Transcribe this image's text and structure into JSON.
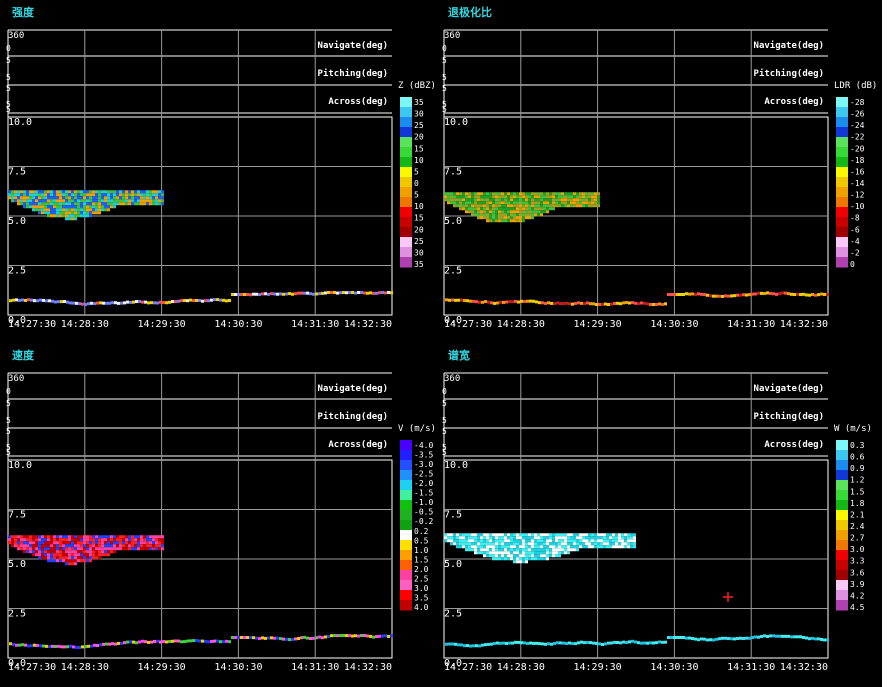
{
  "panels": [
    {
      "title": "强度",
      "title_color": "#33d6e0",
      "cbar_label": "Z (dBZ)",
      "cbar_colors": [
        "#7cf7f7",
        "#3cc6f0",
        "#1a8cf0",
        "#1038d8",
        "#5ae25a",
        "#38d838",
        "#14b814",
        "#f8f800",
        "#f0c800",
        "#f0a000",
        "#f07800",
        "#f00000",
        "#c80000",
        "#a00000",
        "#f8c8f8",
        "#e090e0",
        "#b040b0"
      ],
      "cbar_ticks": [
        "35",
        "30",
        "25",
        "20",
        "15",
        "10",
        "5",
        "0",
        "5",
        "10",
        "15",
        "20",
        "25",
        "30",
        "35"
      ],
      "echo_colors": [
        "#40c040",
        "#f0a000",
        "#2060f0",
        "#20d0d0"
      ],
      "echo_height": "#3ca23c",
      "ground_colors": [
        "#f0f0f0",
        "#ff5050",
        "#f0d000",
        "#7080ff"
      ]
    },
    {
      "title": "退极化比",
      "title_color": "#33d6e0",
      "cbar_label": "LDR (dB)",
      "cbar_colors": [
        "#7cf7f7",
        "#3cc6f0",
        "#1a8cf0",
        "#1038d8",
        "#5ae25a",
        "#38d838",
        "#14b814",
        "#f8f800",
        "#f0c800",
        "#f0a000",
        "#f07800",
        "#f00000",
        "#c80000",
        "#a00000",
        "#f8c8f8",
        "#e090e0",
        "#b040b0"
      ],
      "cbar_ticks": [
        "-28",
        "-26",
        "-24",
        "-22",
        "-20",
        "-18",
        "-16",
        "-14",
        "-12",
        "-10",
        "-8",
        "-6",
        "-4",
        "-2",
        "0"
      ],
      "echo_colors": [
        "#40c040",
        "#20a020",
        "#a0a020",
        "#f0a000"
      ],
      "echo_height": "#3ca23c",
      "ground_colors": [
        "#ff5050",
        "#f0a000",
        "#f0d000",
        "#c02020"
      ]
    },
    {
      "title": "速度",
      "title_color": "#33d6e0",
      "cbar_label": "V (m/s)",
      "cbar_colors": [
        "#4800ff",
        "#2020ff",
        "#2050ff",
        "#2090ff",
        "#20d0f0",
        "#40f0a0",
        "#10c010",
        "#20b020",
        "#10a010",
        "#ffffff",
        "#ffe000",
        "#ffa000",
        "#ff6000",
        "#ff40a0",
        "#ff60c0",
        "#ff0000",
        "#c00000"
      ],
      "cbar_ticks": [
        "-4.0",
        "-3.5",
        "-3.0",
        "-2.5",
        "-2.0",
        "-1.5",
        "-1.0",
        "-0.5",
        "-0.2",
        "0.2",
        "0.5",
        "1.0",
        "1.5",
        "2.0",
        "2.5",
        "3.0",
        "3.5",
        "4.0"
      ],
      "echo_colors": [
        "#ff2020",
        "#c00000",
        "#2040ff",
        "#ff40a0"
      ],
      "echo_height": "#d01010",
      "ground_colors": [
        "#ff60c0",
        "#ff40ff",
        "#f0d000",
        "#40d040",
        "#2040ff"
      ]
    },
    {
      "title": "谱宽",
      "title_color": "#33d6e0",
      "cbar_label": "W (m/s)",
      "cbar_colors": [
        "#7cf7f7",
        "#3cc6f0",
        "#1a8cf0",
        "#1038d8",
        "#5ae25a",
        "#38d838",
        "#14b814",
        "#f8f800",
        "#f0c800",
        "#f0a000",
        "#f07800",
        "#f00000",
        "#c80000",
        "#a00000",
        "#f8c8f8",
        "#e090e0",
        "#b040b0"
      ],
      "cbar_ticks": [
        "0.3",
        "0.6",
        "0.9",
        "1.2",
        "1.5",
        "1.8",
        "2.1",
        "2.4",
        "2.7",
        "3.0",
        "3.3",
        "3.6",
        "3.9",
        "4.2",
        "4.5"
      ],
      "echo_colors": [
        "#40f0f0",
        "#20d0e0",
        "#ffffff"
      ],
      "echo_height": "#40e0f0",
      "ground_colors": [
        "#40e0f0",
        "#40f0f0",
        "#20c0e0"
      ]
    }
  ],
  "strip_labels": {
    "top_value": "360",
    "navigate": "Navigate(deg)",
    "pitching": "Pitching(deg)",
    "across": "Across(deg)",
    "small_left": [
      "0",
      "5",
      "5",
      "5",
      "5",
      "5"
    ]
  },
  "chart_data": [
    {
      "type": "heatmap",
      "title": "强度",
      "ylabel": "",
      "xlabel": "",
      "ylim": [
        0,
        10
      ],
      "x_ticks": [
        "14:27:30",
        "14:28:30",
        "14:29:30",
        "14:30:30",
        "14:31:30",
        "14:32:30"
      ],
      "y_ticks": [
        "0.0",
        "2.5",
        "5.0",
        "7.5",
        "10.0"
      ],
      "colorbar": "Z (dBZ)",
      "grid": true,
      "cloud_layer": {
        "x_start": "14:27:30",
        "x_end": "14:29:30",
        "height_km": [
          5.2,
          6.3
        ]
      }
    },
    {
      "type": "heatmap",
      "title": "退极化比",
      "ylim": [
        0,
        10
      ],
      "x_ticks": [
        "14:27:30",
        "14:28:30",
        "14:29:30",
        "14:30:30",
        "14:31:30",
        "14:32:30"
      ],
      "y_ticks": [
        "0.0",
        "2.5",
        "5.0",
        "7.5",
        "10.0"
      ],
      "colorbar": "LDR (dB)",
      "grid": true,
      "cloud_layer": {
        "x_start": "14:27:30",
        "x_end": "14:29:30",
        "height_km": [
          5.0,
          6.2
        ]
      }
    },
    {
      "type": "heatmap",
      "title": "速度",
      "ylim": [
        0,
        10
      ],
      "x_ticks": [
        "14:27:30",
        "14:28:30",
        "14:29:30",
        "14:30:30",
        "14:31:30",
        "14:32:30"
      ],
      "y_ticks": [
        "0.0",
        "2.5",
        "5.0",
        "7.5",
        "10.0"
      ],
      "colorbar": "V (m/s)",
      "grid": true,
      "cloud_layer": {
        "x_start": "14:27:30",
        "x_end": "14:29:30",
        "height_km": [
          5.1,
          6.2
        ]
      }
    },
    {
      "type": "heatmap",
      "title": "谱宽",
      "ylim": [
        0,
        10
      ],
      "x_ticks": [
        "14:27:30",
        "14:28:30",
        "14:29:30",
        "14:30:30",
        "14:31:30",
        "14:32:30"
      ],
      "y_ticks": [
        "0.0",
        "2.5",
        "5.0",
        "7.5",
        "10.0"
      ],
      "colorbar": "W (m/s)",
      "grid": true,
      "cloud_layer": {
        "x_start": "14:27:30",
        "x_end": "14:30:00",
        "height_km": [
          5.2,
          6.3
        ]
      }
    }
  ]
}
